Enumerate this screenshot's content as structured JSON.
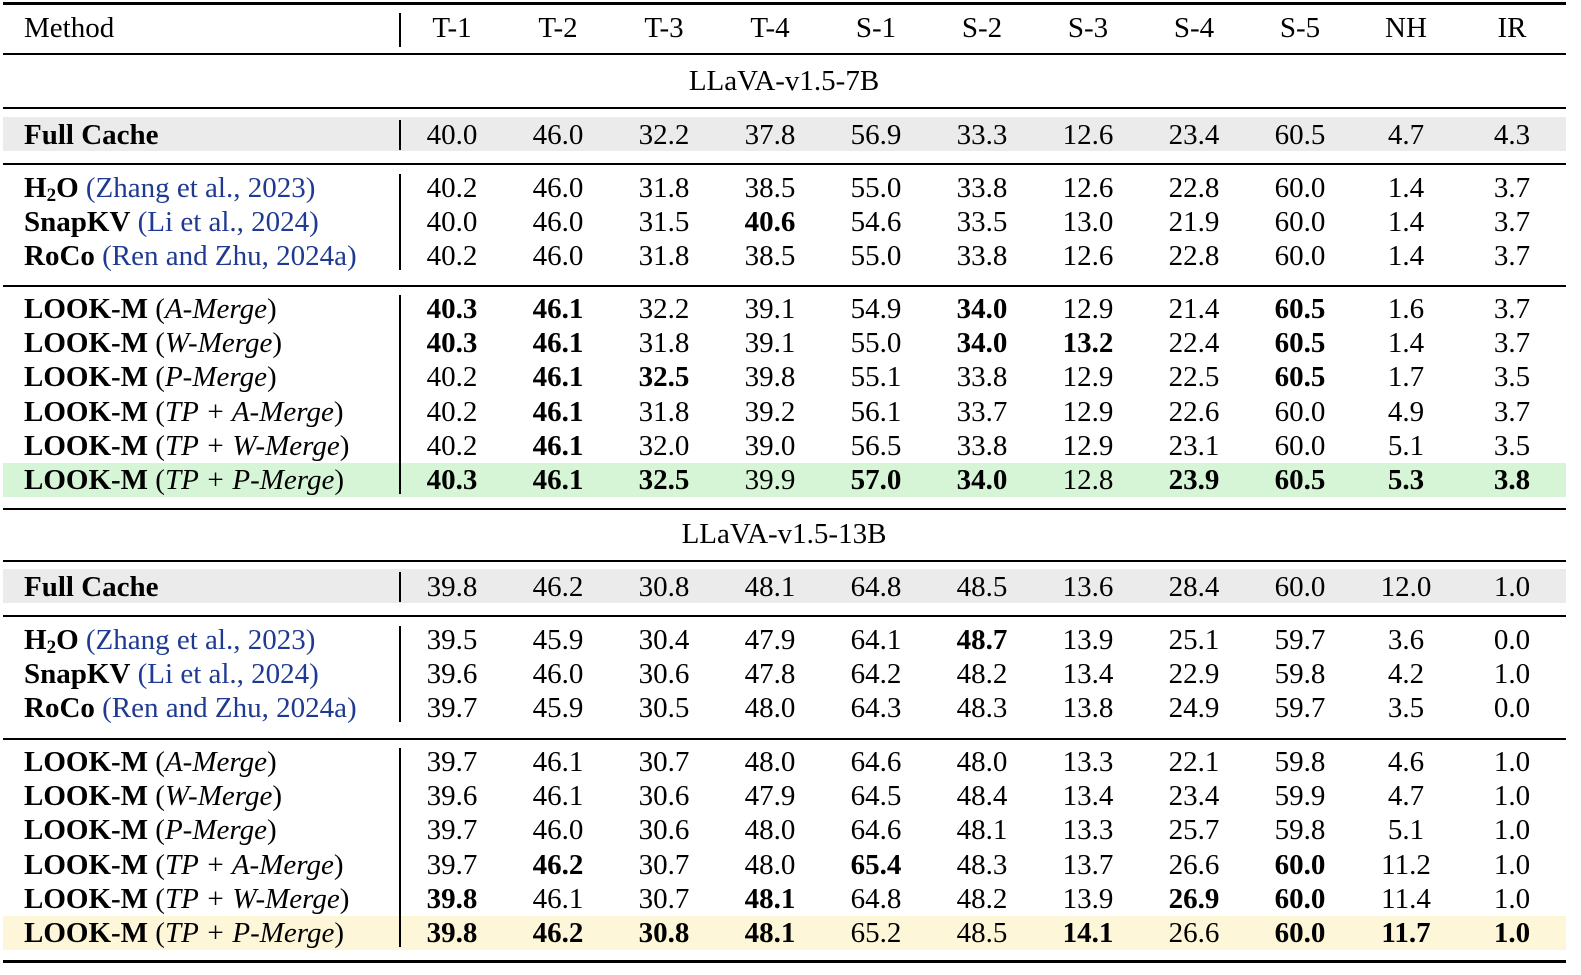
{
  "table": {
    "header": {
      "method_label": "Method",
      "columns": [
        "T-1",
        "T-2",
        "T-3",
        "T-4",
        "S-1",
        "S-2",
        "S-3",
        "S-4",
        "S-5",
        "NH",
        "IR"
      ]
    },
    "highlight_colors": {
      "full_cache": "#ebebeb",
      "best_7b": "#d6f5d6",
      "best_13b": "#fdf6d8"
    },
    "groups": [
      {
        "title": "LLaVA-v1.5-7B",
        "full_cache": {
          "name": "Full Cache",
          "values": [
            "40.0",
            "46.0",
            "32.2",
            "37.8",
            "56.9",
            "33.3",
            "12.6",
            "23.4",
            "60.5",
            "4.7",
            "4.3"
          ],
          "bold": []
        },
        "baselines": [
          {
            "name_parts": [
              "H",
              "2",
              "O"
            ],
            "cite": "(Zhang et al., 2023)",
            "values": [
              "40.2",
              "46.0",
              "31.8",
              "38.5",
              "55.0",
              "33.8",
              "12.6",
              "22.8",
              "60.0",
              "1.4",
              "3.7"
            ],
            "bold": []
          },
          {
            "name": "SnapKV",
            "cite": "(Li et al., 2024)",
            "values": [
              "40.0",
              "46.0",
              "31.5",
              "40.6",
              "54.6",
              "33.5",
              "13.0",
              "21.9",
              "60.0",
              "1.4",
              "3.7"
            ],
            "bold": [
              3
            ]
          },
          {
            "name": "RoCo",
            "cite": "(Ren and Zhu, 2024a)",
            "values": [
              "40.2",
              "46.0",
              "31.8",
              "38.5",
              "55.0",
              "33.8",
              "12.6",
              "22.8",
              "60.0",
              "1.4",
              "3.7"
            ],
            "bold": []
          }
        ],
        "ours": [
          {
            "name": "LOOK-M",
            "variant": "A-Merge",
            "values": [
              "40.3",
              "46.1",
              "32.2",
              "39.1",
              "54.9",
              "34.0",
              "12.9",
              "21.4",
              "60.5",
              "1.6",
              "3.7"
            ],
            "bold": [
              0,
              1,
              5,
              8
            ]
          },
          {
            "name": "LOOK-M",
            "variant": "W-Merge",
            "values": [
              "40.3",
              "46.1",
              "31.8",
              "39.1",
              "55.0",
              "34.0",
              "13.2",
              "22.4",
              "60.5",
              "1.4",
              "3.7"
            ],
            "bold": [
              0,
              1,
              5,
              6,
              8
            ]
          },
          {
            "name": "LOOK-M",
            "variant": "P-Merge",
            "values": [
              "40.2",
              "46.1",
              "32.5",
              "39.8",
              "55.1",
              "33.8",
              "12.9",
              "22.5",
              "60.5",
              "1.7",
              "3.5"
            ],
            "bold": [
              1,
              2,
              8
            ]
          },
          {
            "name": "LOOK-M",
            "variant": "TP + A-Merge",
            "values": [
              "40.2",
              "46.1",
              "31.8",
              "39.2",
              "56.1",
              "33.7",
              "12.9",
              "22.6",
              "60.0",
              "4.9",
              "3.7"
            ],
            "bold": [
              1
            ]
          },
          {
            "name": "LOOK-M",
            "variant": "TP + W-Merge",
            "values": [
              "40.2",
              "46.1",
              "32.0",
              "39.0",
              "56.5",
              "33.8",
              "12.9",
              "23.1",
              "60.0",
              "5.1",
              "3.5"
            ],
            "bold": [
              1
            ]
          },
          {
            "name": "LOOK-M",
            "variant": "TP + P-Merge",
            "values": [
              "40.3",
              "46.1",
              "32.5",
              "39.9",
              "57.0",
              "34.0",
              "12.8",
              "23.9",
              "60.5",
              "5.3",
              "3.8"
            ],
            "bold": [
              0,
              1,
              2,
              4,
              5,
              7,
              8,
              9,
              10
            ]
          }
        ]
      },
      {
        "title": "LLaVA-v1.5-13B",
        "full_cache": {
          "name": "Full Cache",
          "values": [
            "39.8",
            "46.2",
            "30.8",
            "48.1",
            "64.8",
            "48.5",
            "13.6",
            "28.4",
            "60.0",
            "12.0",
            "1.0"
          ],
          "bold": []
        },
        "baselines": [
          {
            "name_parts": [
              "H",
              "2",
              "O"
            ],
            "cite": "(Zhang et al., 2023)",
            "values": [
              "39.5",
              "45.9",
              "30.4",
              "47.9",
              "64.1",
              "48.7",
              "13.9",
              "25.1",
              "59.7",
              "3.6",
              "0.0"
            ],
            "bold": [
              5
            ]
          },
          {
            "name": "SnapKV",
            "cite": "(Li et al., 2024)",
            "values": [
              "39.6",
              "46.0",
              "30.6",
              "47.8",
              "64.2",
              "48.2",
              "13.4",
              "22.9",
              "59.8",
              "4.2",
              "1.0"
            ],
            "bold": []
          },
          {
            "name": "RoCo",
            "cite": "(Ren and Zhu, 2024a)",
            "values": [
              "39.7",
              "45.9",
              "30.5",
              "48.0",
              "64.3",
              "48.3",
              "13.8",
              "24.9",
              "59.7",
              "3.5",
              "0.0"
            ],
            "bold": []
          }
        ],
        "ours": [
          {
            "name": "LOOK-M",
            "variant": "A-Merge",
            "values": [
              "39.7",
              "46.1",
              "30.7",
              "48.0",
              "64.6",
              "48.0",
              "13.3",
              "22.1",
              "59.8",
              "4.6",
              "1.0"
            ],
            "bold": []
          },
          {
            "name": "LOOK-M",
            "variant": "W-Merge",
            "values": [
              "39.6",
              "46.1",
              "30.6",
              "47.9",
              "64.5",
              "48.4",
              "13.4",
              "23.4",
              "59.9",
              "4.7",
              "1.0"
            ],
            "bold": []
          },
          {
            "name": "LOOK-M",
            "variant": "P-Merge",
            "values": [
              "39.7",
              "46.0",
              "30.6",
              "48.0",
              "64.6",
              "48.1",
              "13.3",
              "25.7",
              "59.8",
              "5.1",
              "1.0"
            ],
            "bold": []
          },
          {
            "name": "LOOK-M",
            "variant": "TP + A-Merge",
            "values": [
              "39.7",
              "46.2",
              "30.7",
              "48.0",
              "65.4",
              "48.3",
              "13.7",
              "26.6",
              "60.0",
              "11.2",
              "1.0"
            ],
            "bold": [
              1,
              4,
              8
            ]
          },
          {
            "name": "LOOK-M",
            "variant": "TP + W-Merge",
            "values": [
              "39.8",
              "46.1",
              "30.7",
              "48.1",
              "64.8",
              "48.2",
              "13.9",
              "26.9",
              "60.0",
              "11.4",
              "1.0"
            ],
            "bold": [
              0,
              3,
              7,
              8
            ]
          },
          {
            "name": "LOOK-M",
            "variant": "TP + P-Merge",
            "values": [
              "39.8",
              "46.2",
              "30.8",
              "48.1",
              "65.2",
              "48.5",
              "14.1",
              "26.6",
              "60.0",
              "11.7",
              "1.0"
            ],
            "bold": [
              0,
              1,
              2,
              3,
              6,
              8,
              9,
              10
            ]
          }
        ]
      }
    ]
  }
}
